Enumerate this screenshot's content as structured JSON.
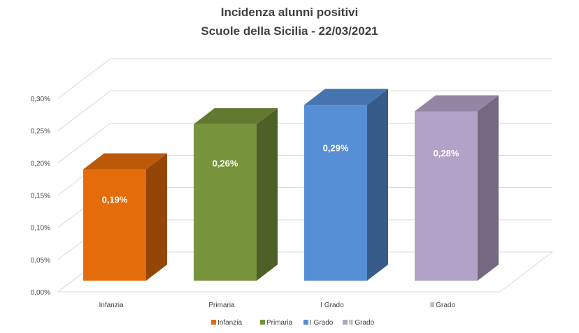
{
  "chart_data": {
    "type": "bar",
    "title": "Incidenza alunni positivi",
    "subtitle": "Scuole della Sicilia - 22/03/2021",
    "categories": [
      "Infanzia",
      "Primaria",
      "I Grado",
      "II Grado"
    ],
    "values": [
      0.19,
      0.26,
      0.29,
      0.28
    ],
    "data_labels": [
      "0,19%",
      "0,26%",
      "0,29%",
      "0,28%"
    ],
    "y_ticks": [
      "0,00%",
      "0,05%",
      "0,10%",
      "0,15%",
      "0,20%",
      "0,25%",
      "0,30%"
    ],
    "ylim": [
      0,
      0.3
    ],
    "grid": true,
    "three_d": true,
    "legend_position": "bottom",
    "colors": {
      "Infanzia": "#e46c0a",
      "Primaria": "#77933c",
      "I Grado": "#558ed5",
      "II Grado": "#b3a2c7"
    }
  }
}
